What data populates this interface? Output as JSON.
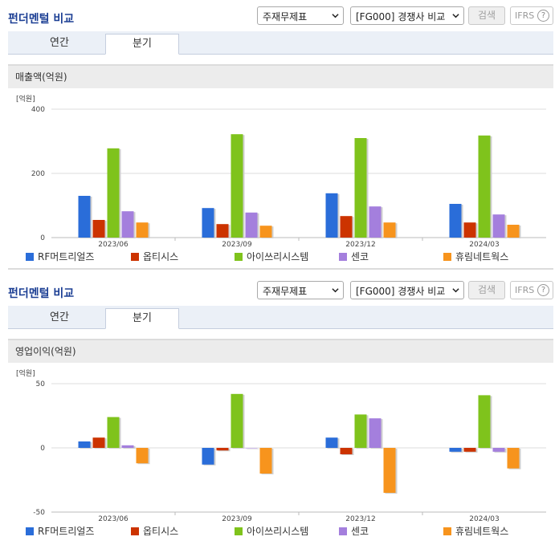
{
  "panels": [
    {
      "title": "펀더멘털 비교",
      "select_statement": "주재무제표",
      "select_compare": "[FG000] 경쟁사 비교",
      "search_label": "검색",
      "ifrs_label": "IFRS",
      "ifrs_help": "?",
      "tabs": [
        "연간",
        "분기"
      ],
      "active_tab": "분기",
      "section_title": "매출액(억원)"
    },
    {
      "title": "펀더멘털 비교",
      "select_statement": "주재무제표",
      "select_compare": "[FG000] 경쟁사 비교",
      "search_label": "검색",
      "ifrs_label": "IFRS",
      "ifrs_help": "?",
      "tabs": [
        "연간",
        "분기"
      ],
      "active_tab": "분기",
      "section_title": "영업이익(억원)"
    }
  ],
  "colors": {
    "accent_title": "#1c3f94",
    "series": [
      "#2a6dd9",
      "#cc3300",
      "#7fc31c",
      "#a47fdd",
      "#f7941d"
    ]
  },
  "chart_data": [
    {
      "type": "bar",
      "unit_label": "[억원]",
      "categories": [
        "2023/06",
        "2023/09",
        "2023/12",
        "2024/03"
      ],
      "ylim": [
        0,
        400
      ],
      "yticks": [
        0,
        200,
        400
      ],
      "grid": true,
      "legend_position": "bottom",
      "series": [
        {
          "name": "RF머트리얼즈",
          "values": [
            130,
            92,
            138,
            105
          ]
        },
        {
          "name": "옵티시스",
          "values": [
            55,
            42,
            67,
            47
          ]
        },
        {
          "name": "아이쓰리시스템",
          "values": [
            278,
            322,
            310,
            318
          ]
        },
        {
          "name": "센코",
          "values": [
            82,
            78,
            97,
            72
          ]
        },
        {
          "name": "휴림네트웍스",
          "values": [
            47,
            37,
            47,
            40
          ]
        }
      ]
    },
    {
      "type": "bar",
      "unit_label": "[억원]",
      "categories": [
        "2023/06",
        "2023/09",
        "2023/12",
        "2024/03"
      ],
      "ylim": [
        -50,
        50
      ],
      "yticks": [
        -50,
        0,
        50
      ],
      "grid": true,
      "legend_position": "bottom",
      "series": [
        {
          "name": "RF머트리얼즈",
          "values": [
            5,
            -13,
            8,
            -3
          ]
        },
        {
          "name": "옵티시스",
          "values": [
            8,
            -2,
            -5,
            -3
          ]
        },
        {
          "name": "아이쓰리시스템",
          "values": [
            24,
            42,
            26,
            41
          ]
        },
        {
          "name": "센코",
          "values": [
            2,
            0,
            23,
            -3
          ]
        },
        {
          "name": "휴림네트웍스",
          "values": [
            -12,
            -20,
            -35,
            -16
          ]
        }
      ]
    }
  ]
}
